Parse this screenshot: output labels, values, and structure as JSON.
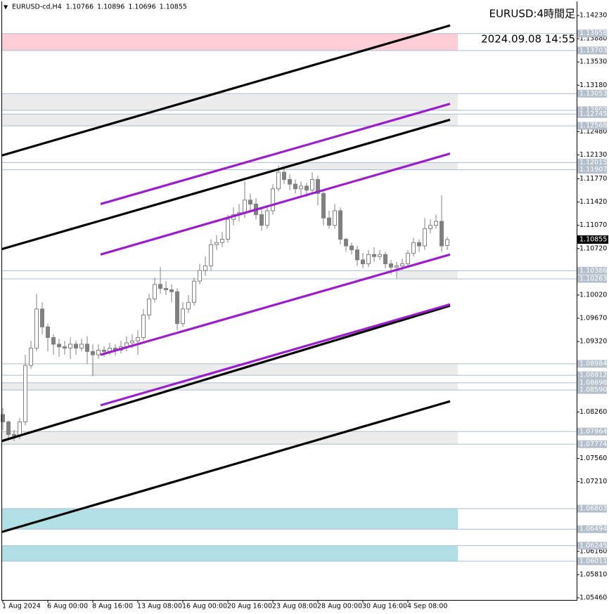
{
  "chart_data": {
    "type": "candlestick",
    "symbol": "EURUSD-cd,H4",
    "title": "EURUSD:4時間足",
    "subtitle": "2024.09.08 14:55",
    "categories": [
      "1 Aug 2024",
      null,
      null,
      null,
      null,
      null,
      null,
      null,
      "6 Aug 00:00",
      null,
      null,
      null,
      null,
      null,
      null,
      null,
      "8 Aug 16:00",
      null,
      null,
      null,
      null,
      null,
      null,
      null,
      "13 Aug 08:00",
      null,
      null,
      null,
      null,
      null,
      null,
      null,
      "16 Aug 00:00",
      null,
      null,
      null,
      null,
      null,
      null,
      null,
      "20 Aug 16:00",
      null,
      null,
      null,
      null,
      null,
      null,
      null,
      "23 Aug 08:00",
      null,
      null,
      null,
      null,
      null,
      null,
      null,
      "28 Aug 00:00",
      null,
      null,
      null,
      null,
      null,
      null,
      null,
      "30 Aug 16:00",
      null,
      null,
      null,
      null,
      null,
      null,
      null,
      "4 Sep 08:00",
      null,
      null,
      null,
      null,
      null,
      null,
      null
    ],
    "open": [
      1.0822,
      1.0811,
      1.0792,
      1.079,
      1.0811,
      1.0896,
      1.0922,
      1.0981,
      1.0954,
      1.0938,
      1.0928,
      1.0924,
      1.0922,
      1.0928,
      1.0922,
      1.0928,
      1.0917,
      1.0912,
      1.0919,
      1.0917,
      1.0922,
      1.0919,
      1.0924,
      1.093,
      1.0933,
      1.0938,
      1.0972,
      1.0996,
      1.1018,
      1.1012,
      1.101,
      1.1007,
      1.0959,
      1.0981,
      1.0991,
      1.1023,
      1.1039,
      1.1046,
      1.1078,
      1.1081,
      1.1086,
      1.1116,
      1.1123,
      1.1126,
      1.1145,
      1.1139,
      1.1123,
      1.1107,
      1.1129,
      1.1162,
      1.1187,
      1.1176,
      1.1169,
      1.1162,
      1.1166,
      1.116,
      1.1176,
      1.1155,
      1.1118,
      1.1107,
      1.1129,
      1.1086,
      1.1076,
      1.107,
      1.1055,
      1.1049,
      1.1063,
      1.106,
      1.1063,
      1.1049,
      1.1044,
      1.1046,
      1.1049,
      1.1065,
      1.1081,
      1.1076,
      1.1102,
      1.1107,
      1.1113,
      1.10766
    ],
    "high": [
      1.0832,
      1.0813,
      1.0799,
      1.0817,
      1.0912,
      1.0933,
      1.1004,
      1.0991,
      1.0959,
      1.0943,
      1.0936,
      1.0933,
      1.0938,
      1.0933,
      1.0936,
      1.094,
      1.0928,
      1.0928,
      1.0925,
      1.093,
      1.0928,
      1.0933,
      1.094,
      1.0943,
      1.0949,
      1.0981,
      1.1004,
      1.1028,
      1.1044,
      1.1023,
      1.1018,
      1.1012,
      1.0991,
      1.1002,
      1.1028,
      1.1049,
      1.106,
      1.1086,
      1.1092,
      1.1097,
      1.1123,
      1.1134,
      1.1139,
      1.1173,
      1.1155,
      1.1148,
      1.1134,
      1.1137,
      1.1169,
      1.1197,
      1.1194,
      1.1184,
      1.1176,
      1.1173,
      1.1171,
      1.1187,
      1.1182,
      1.1158,
      1.1129,
      1.1139,
      1.1134,
      1.1088,
      1.1081,
      1.1076,
      1.1065,
      1.107,
      1.1074,
      1.107,
      1.1067,
      1.1055,
      1.1052,
      1.1057,
      1.107,
      1.1088,
      1.1086,
      1.1118,
      1.1116,
      1.1123,
      1.1152,
      1.10896
    ],
    "low": [
      1.0799,
      1.0785,
      1.0782,
      1.0785,
      1.0806,
      1.0891,
      1.0917,
      1.0943,
      1.0917,
      1.0912,
      1.0909,
      1.0912,
      1.0906,
      1.0912,
      1.0917,
      1.0898,
      1.088,
      1.0906,
      1.0909,
      1.0912,
      1.0911,
      1.0914,
      1.0917,
      1.0922,
      1.0912,
      1.0933,
      1.0965,
      1.0991,
      1.1004,
      1.1002,
      1.0991,
      1.0949,
      1.0954,
      1.0975,
      1.0986,
      1.1018,
      1.1031,
      1.1039,
      1.107,
      1.1074,
      1.1081,
      1.1107,
      1.1113,
      1.1118,
      1.1129,
      1.1116,
      1.1099,
      1.1102,
      1.1123,
      1.1158,
      1.1169,
      1.116,
      1.1155,
      1.1152,
      1.115,
      1.1155,
      1.1137,
      1.1107,
      1.1102,
      1.1102,
      1.1078,
      1.1067,
      1.1063,
      1.1046,
      1.1042,
      1.1044,
      1.1052,
      1.1055,
      1.1042,
      1.1033,
      1.1027,
      1.1039,
      1.1046,
      1.106,
      1.1067,
      1.107,
      1.1095,
      1.1102,
      1.1067,
      1.10696
    ],
    "close": [
      1.0811,
      1.0792,
      1.079,
      1.0811,
      1.0896,
      1.0922,
      1.0981,
      1.0954,
      1.0938,
      1.0928,
      1.0924,
      1.0922,
      1.0928,
      1.0922,
      1.0928,
      1.0917,
      1.0912,
      1.0919,
      1.0917,
      1.0922,
      1.0919,
      1.0924,
      1.093,
      1.0933,
      1.0938,
      1.0972,
      1.0996,
      1.1018,
      1.1012,
      1.101,
      1.1007,
      1.0959,
      1.0981,
      1.0991,
      1.1023,
      1.1039,
      1.1046,
      1.1078,
      1.1081,
      1.1086,
      1.1116,
      1.1123,
      1.1126,
      1.1145,
      1.1139,
      1.1123,
      1.1107,
      1.1129,
      1.1162,
      1.1187,
      1.1176,
      1.1169,
      1.1162,
      1.1166,
      1.116,
      1.1176,
      1.1155,
      1.1118,
      1.1107,
      1.1129,
      1.1086,
      1.1076,
      1.107,
      1.1055,
      1.1049,
      1.1063,
      1.106,
      1.1063,
      1.1049,
      1.1044,
      1.1046,
      1.1049,
      1.1065,
      1.1081,
      1.1076,
      1.1102,
      1.1107,
      1.1113,
      1.1076,
      1.10855
    ],
    "color": "#808080",
    "xlim": [
      -0.25,
      102
    ],
    "ylim": [
      1.05428,
      1.14442
    ],
    "yticks": [
      {
        "value": 1.1423,
        "label": "1.14230"
      },
      {
        "value": 1.1388,
        "label": "1.13880"
      },
      {
        "value": 1.1353,
        "label": "1.13530"
      },
      {
        "value": 1.1318,
        "label": "1.13180"
      },
      {
        "value": 1.1248,
        "label": "1.12480"
      },
      {
        "value": 1.1213,
        "label": "1.12130"
      },
      {
        "value": 1.1177,
        "label": "1.11770"
      },
      {
        "value": 1.1142,
        "label": "1.11420"
      },
      {
        "value": 1.1107,
        "label": "1.11070"
      },
      {
        "value": 1.1072,
        "label": "1.10720"
      },
      {
        "value": 1.1002,
        "label": "1.10020"
      },
      {
        "value": 1.0967,
        "label": "1.09670"
      },
      {
        "value": 1.0932,
        "label": "1.09320"
      },
      {
        "value": 1.0826,
        "label": "1.08260"
      },
      {
        "value": 1.0756,
        "label": "1.07560"
      },
      {
        "value": 1.0721,
        "label": "1.07210"
      },
      {
        "value": 1.0616,
        "label": "1.06160"
      },
      {
        "value": 1.0581,
        "label": "1.05810"
      },
      {
        "value": 1.0546,
        "label": "1.05460"
      }
    ],
    "zones": [
      {
        "top": 1.13958,
        "bottom": 1.13703,
        "color": "#ffcdd6",
        "x0": -0.25,
        "x1": 80.875
      },
      {
        "top": 1.13053,
        "bottom": 1.12802,
        "color": "#ececec",
        "x0": -0.25,
        "x1": 80.875
      },
      {
        "top": 1.12745,
        "bottom": 1.12568,
        "color": "#ececec",
        "x0": -0.25,
        "x1": 80.875
      },
      {
        "top": 1.12015,
        "bottom": 1.11907,
        "color": "#ececec",
        "x0": 49.5,
        "x1": 80.875
      },
      {
        "top": 1.10386,
        "bottom": 1.10263,
        "color": "#ececec",
        "x0": 70.125,
        "x1": 80.875
      },
      {
        "top": 1.08984,
        "bottom": 1.08812,
        "color": "#ececec",
        "x0": 15.75,
        "x1": 80.875
      },
      {
        "top": 1.08698,
        "bottom": {
          "value": 1.0859,
          "label": "1.08590"
        },
        "color": "#ececec",
        "x0": -0.25,
        "x1": 80.875
      },
      {
        "top": 1.07964,
        "bottom": 1.07774,
        "color": "#ececec",
        "x0": -0.25,
        "x1": 80.875
      },
      {
        "top": 1.06803,
        "bottom": 1.06494,
        "color": "#b0e0e6",
        "x0": -0.25,
        "x1": 80.875
      },
      {
        "top": 1.06245,
        "bottom": 1.06011,
        "color": "#b0e0e6",
        "x0": -0.25,
        "x1": 80.875
      }
    ],
    "trendlines": [
      {
        "color": "#000000",
        "x": [
          -0.25,
          79.5
        ],
        "y": [
          1.1212,
          1.1408
        ]
      },
      {
        "color": "#000000",
        "x": [
          -0.25,
          79.5
        ],
        "y": [
          1.1071,
          1.1266
        ]
      },
      {
        "color": "#000000",
        "x": [
          -0.25,
          79.5
        ],
        "y": [
          1.0782,
          1.0986
        ]
      },
      {
        "color": "#000000",
        "x": [
          -0.25,
          79.5
        ],
        "y": [
          1.0645,
          1.0842
        ]
      },
      {
        "color": "#9b1fc8",
        "x": [
          17.375,
          79.5
        ],
        "y": [
          1.1139,
          1.129
        ]
      },
      {
        "color": "#9b1fc8",
        "x": [
          17.375,
          79.5
        ],
        "y": [
          1.1063,
          1.1215
        ]
      },
      {
        "color": "#9b1fc8",
        "x": [
          17.375,
          79.5
        ],
        "y": [
          1.0912,
          1.1063
        ]
      },
      {
        "color": "#9b1fc8",
        "x": [
          17.375,
          79.5
        ],
        "y": [
          1.0836,
          1.0988
        ]
      }
    ]
  }
}
